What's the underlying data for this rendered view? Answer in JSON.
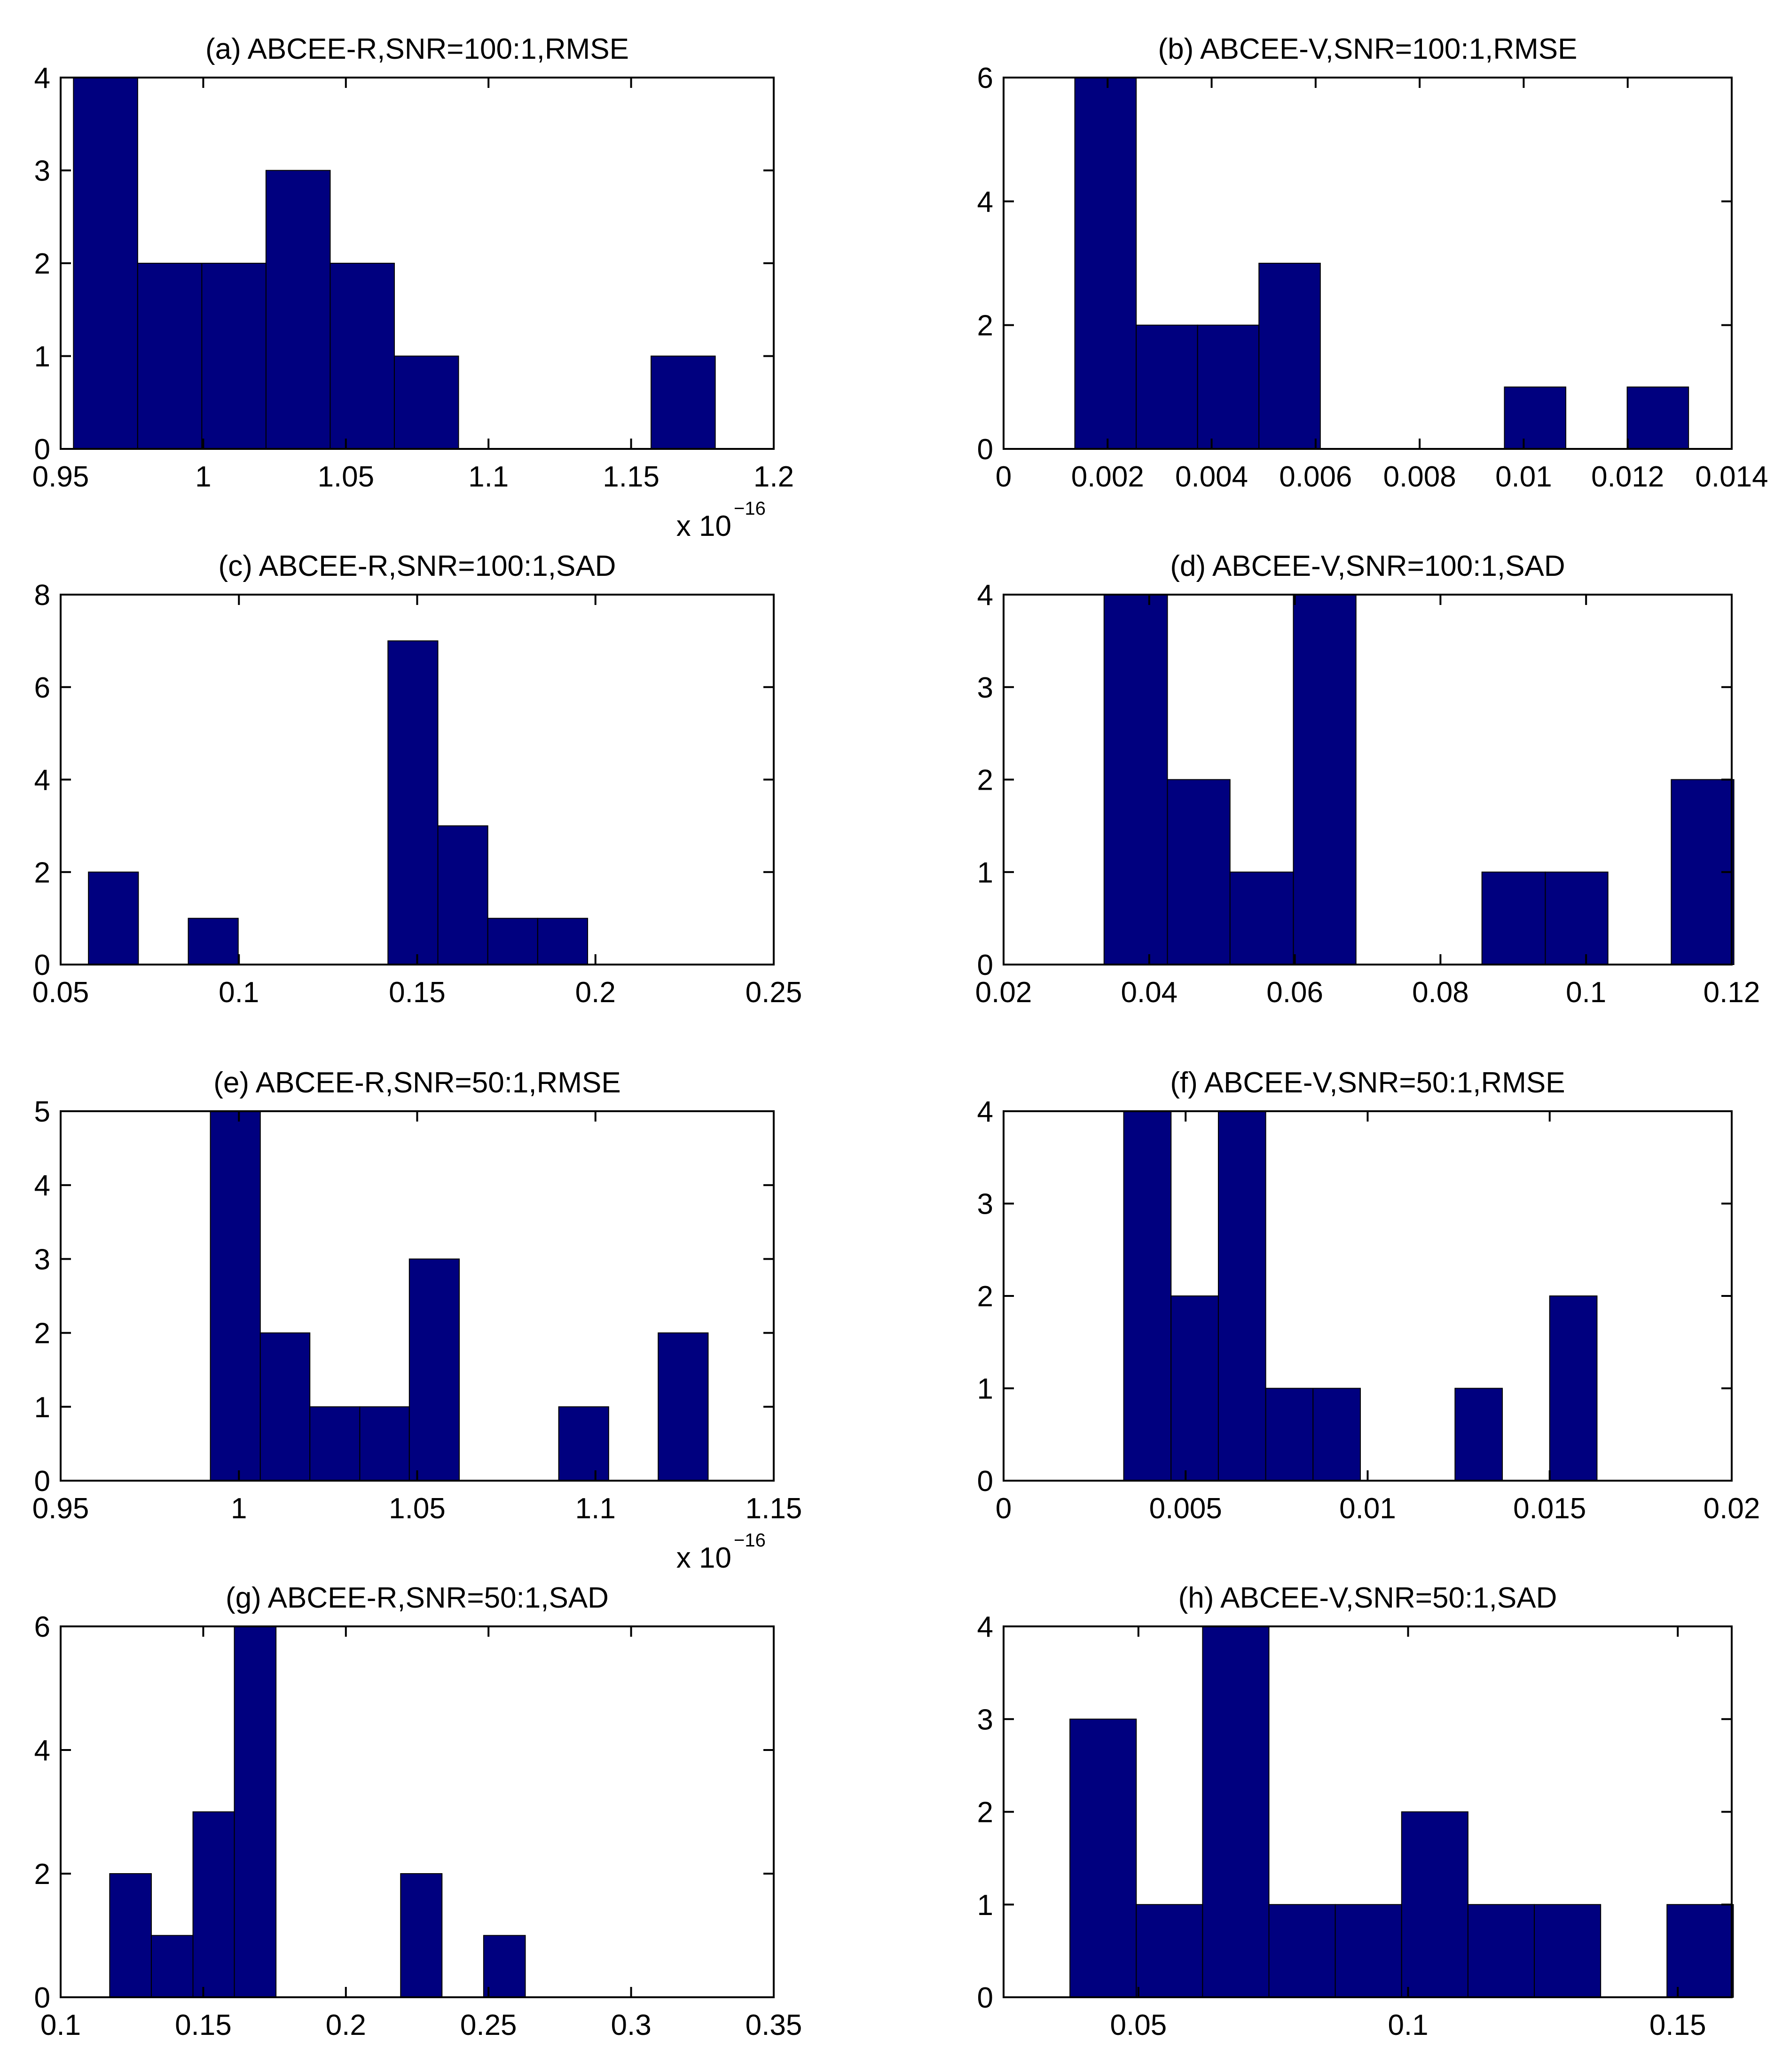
{
  "figure": {
    "bar_color": "#00007f",
    "bar_edge_color": "#000000",
    "background": "#ffffff"
  },
  "chart_data": [
    {
      "id": "a",
      "type": "bar",
      "histogram": true,
      "title": "(a) ABCEE-R,SNR=100:1,RMSE",
      "xlim": [
        0.95,
        1.2
      ],
      "ylim": [
        0,
        4
      ],
      "xticks": [
        "0.95",
        "1",
        "1.05",
        "1.1",
        "1.15",
        "1.2"
      ],
      "xtick_values": [
        0.95,
        1.0,
        1.05,
        1.1,
        1.15,
        1.2
      ],
      "yticks": [
        "0",
        "1",
        "2",
        "3",
        "4"
      ],
      "ytick_values": [
        0,
        1,
        2,
        3,
        4
      ],
      "exponent_label": "x 10",
      "exponent_power": "−16",
      "bins": [
        {
          "x0": 0.9545,
          "x1": 0.977,
          "count": 4
        },
        {
          "x0": 0.977,
          "x1": 0.9995,
          "count": 2
        },
        {
          "x0": 0.9995,
          "x1": 1.022,
          "count": 2
        },
        {
          "x0": 1.022,
          "x1": 1.0445,
          "count": 3
        },
        {
          "x0": 1.0445,
          "x1": 1.067,
          "count": 2
        },
        {
          "x0": 1.067,
          "x1": 1.0895,
          "count": 1
        },
        {
          "x0": 1.157,
          "x1": 1.1795,
          "count": 1
        }
      ]
    },
    {
      "id": "b",
      "type": "bar",
      "histogram": true,
      "title": "(b) ABCEE-V,SNR=100:1,RMSE",
      "xlim": [
        0,
        0.014
      ],
      "ylim": [
        0,
        6
      ],
      "xticks": [
        "0",
        "0.002",
        "0.004",
        "0.006",
        "0.008",
        "0.01",
        "0.012",
        "0.014"
      ],
      "xtick_values": [
        0,
        0.002,
        0.004,
        0.006,
        0.008,
        0.01,
        0.012,
        0.014
      ],
      "yticks": [
        "0",
        "2",
        "4",
        "6"
      ],
      "ytick_values": [
        0,
        2,
        4,
        6
      ],
      "bins": [
        {
          "x0": 0.00137,
          "x1": 0.00255,
          "count": 6
        },
        {
          "x0": 0.00255,
          "x1": 0.00373,
          "count": 2
        },
        {
          "x0": 0.00373,
          "x1": 0.00491,
          "count": 2
        },
        {
          "x0": 0.00491,
          "x1": 0.00609,
          "count": 3
        },
        {
          "x0": 0.00963,
          "x1": 0.01081,
          "count": 1
        },
        {
          "x0": 0.01199,
          "x1": 0.01317,
          "count": 1
        }
      ]
    },
    {
      "id": "c",
      "type": "bar",
      "histogram": true,
      "title": "(c) ABCEE-R,SNR=100:1,SAD",
      "xlim": [
        0.05,
        0.25
      ],
      "ylim": [
        0,
        8
      ],
      "xticks": [
        "0.05",
        "0.1",
        "0.15",
        "0.2",
        "0.25"
      ],
      "xtick_values": [
        0.05,
        0.1,
        0.15,
        0.2,
        0.25
      ],
      "yticks": [
        "0",
        "2",
        "4",
        "6",
        "8"
      ],
      "ytick_values": [
        0,
        2,
        4,
        6,
        8
      ],
      "bins": [
        {
          "x0": 0.0578,
          "x1": 0.0718,
          "count": 2
        },
        {
          "x0": 0.0858,
          "x1": 0.0998,
          "count": 1
        },
        {
          "x0": 0.1418,
          "x1": 0.1558,
          "count": 7
        },
        {
          "x0": 0.1558,
          "x1": 0.1698,
          "count": 3
        },
        {
          "x0": 0.1698,
          "x1": 0.1838,
          "count": 1
        },
        {
          "x0": 0.1838,
          "x1": 0.1978,
          "count": 1
        }
      ]
    },
    {
      "id": "d",
      "type": "bar",
      "histogram": true,
      "title": "(d) ABCEE-V,SNR=100:1,SAD",
      "xlim": [
        0.02,
        0.12
      ],
      "ylim": [
        0,
        4
      ],
      "xticks": [
        "0.02",
        "0.04",
        "0.06",
        "0.08",
        "0.1",
        "0.12"
      ],
      "xtick_values": [
        0.02,
        0.04,
        0.06,
        0.08,
        0.1,
        0.12
      ],
      "yticks": [
        "0",
        "1",
        "2",
        "3",
        "4"
      ],
      "ytick_values": [
        0,
        1,
        2,
        3,
        4
      ],
      "bins": [
        {
          "x0": 0.0338,
          "x1": 0.0425,
          "count": 4
        },
        {
          "x0": 0.0425,
          "x1": 0.0511,
          "count": 2
        },
        {
          "x0": 0.0511,
          "x1": 0.0598,
          "count": 1
        },
        {
          "x0": 0.0598,
          "x1": 0.0684,
          "count": 4
        },
        {
          "x0": 0.0857,
          "x1": 0.0944,
          "count": 1
        },
        {
          "x0": 0.0944,
          "x1": 0.103,
          "count": 1
        },
        {
          "x0": 0.1117,
          "x1": 0.1203,
          "count": 2
        }
      ]
    },
    {
      "id": "e",
      "type": "bar",
      "histogram": true,
      "title": "(e) ABCEE-R,SNR=50:1,RMSE",
      "xlim": [
        0.95,
        1.15
      ],
      "ylim": [
        0,
        5
      ],
      "xticks": [
        "0.95",
        "1",
        "1.05",
        "1.1",
        "1.15"
      ],
      "xtick_values": [
        0.95,
        1.0,
        1.05,
        1.1,
        1.15
      ],
      "yticks": [
        "0",
        "1",
        "2",
        "3",
        "4",
        "5"
      ],
      "ytick_values": [
        0,
        1,
        2,
        3,
        4,
        5
      ],
      "exponent_label": "x 10",
      "exponent_power": "−16",
      "bins": [
        {
          "x0": 0.992,
          "x1": 1.006,
          "count": 5
        },
        {
          "x0": 1.006,
          "x1": 1.0199,
          "count": 2
        },
        {
          "x0": 1.0199,
          "x1": 1.0339,
          "count": 1
        },
        {
          "x0": 1.0339,
          "x1": 1.0478,
          "count": 1
        },
        {
          "x0": 1.0478,
          "x1": 1.0618,
          "count": 3
        },
        {
          "x0": 1.0897,
          "x1": 1.1037,
          "count": 1
        },
        {
          "x0": 1.1176,
          "x1": 1.1316,
          "count": 2
        }
      ]
    },
    {
      "id": "f",
      "type": "bar",
      "histogram": true,
      "title": "(f) ABCEE-V,SNR=50:1,RMSE",
      "xlim": [
        0,
        0.02
      ],
      "ylim": [
        0,
        4
      ],
      "xticks": [
        "0",
        "0.005",
        "0.01",
        "0.015",
        "0.02"
      ],
      "xtick_values": [
        0,
        0.005,
        0.01,
        0.015,
        0.02
      ],
      "yticks": [
        "0",
        "1",
        "2",
        "3",
        "4"
      ],
      "ytick_values": [
        0,
        1,
        2,
        3,
        4
      ],
      "bins": [
        {
          "x0": 0.0033,
          "x1": 0.0046,
          "count": 4
        },
        {
          "x0": 0.0046,
          "x1": 0.0059,
          "count": 2
        },
        {
          "x0": 0.0059,
          "x1": 0.0072,
          "count": 4
        },
        {
          "x0": 0.0072,
          "x1": 0.0085,
          "count": 1
        },
        {
          "x0": 0.0085,
          "x1": 0.0098,
          "count": 1
        },
        {
          "x0": 0.0124,
          "x1": 0.0137,
          "count": 1
        },
        {
          "x0": 0.015,
          "x1": 0.0163,
          "count": 2
        }
      ]
    },
    {
      "id": "g",
      "type": "bar",
      "histogram": true,
      "title": "(g) ABCEE-R,SNR=50:1,SAD",
      "xlim": [
        0.1,
        0.35
      ],
      "ylim": [
        0,
        6
      ],
      "xticks": [
        "0.1",
        "0.15",
        "0.2",
        "0.25",
        "0.3",
        "0.35"
      ],
      "xtick_values": [
        0.1,
        0.15,
        0.2,
        0.25,
        0.3,
        0.35
      ],
      "yticks": [
        "0",
        "2",
        "4",
        "6"
      ],
      "ytick_values": [
        0,
        2,
        4,
        6
      ],
      "bins": [
        {
          "x0": 0.1172,
          "x1": 0.1318,
          "count": 2
        },
        {
          "x0": 0.1318,
          "x1": 0.1464,
          "count": 1
        },
        {
          "x0": 0.1464,
          "x1": 0.1609,
          "count": 3
        },
        {
          "x0": 0.1609,
          "x1": 0.1755,
          "count": 6
        },
        {
          "x0": 0.2192,
          "x1": 0.2337,
          "count": 2
        },
        {
          "x0": 0.2483,
          "x1": 0.2629,
          "count": 1
        }
      ]
    },
    {
      "id": "h",
      "type": "bar",
      "histogram": true,
      "title": "(h) ABCEE-V,SNR=50:1,SAD",
      "xlim": [
        0.025,
        0.16
      ],
      "ylim": [
        0,
        4
      ],
      "xticks": [
        "0.05",
        "0.1",
        "0.15"
      ],
      "xtick_values": [
        0.05,
        0.1,
        0.15
      ],
      "yticks": [
        "0",
        "1",
        "2",
        "3",
        "4"
      ],
      "ytick_values": [
        0,
        1,
        2,
        3,
        4
      ],
      "bins": [
        {
          "x0": 0.0373,
          "x1": 0.0496,
          "count": 3
        },
        {
          "x0": 0.0496,
          "x1": 0.0619,
          "count": 1
        },
        {
          "x0": 0.0619,
          "x1": 0.0742,
          "count": 4
        },
        {
          "x0": 0.0742,
          "x1": 0.0865,
          "count": 1
        },
        {
          "x0": 0.0865,
          "x1": 0.0988,
          "count": 1
        },
        {
          "x0": 0.0988,
          "x1": 0.1111,
          "count": 2
        },
        {
          "x0": 0.1111,
          "x1": 0.1234,
          "count": 1
        },
        {
          "x0": 0.1234,
          "x1": 0.1357,
          "count": 1
        },
        {
          "x0": 0.148,
          "x1": 0.1603,
          "count": 1
        }
      ]
    }
  ]
}
